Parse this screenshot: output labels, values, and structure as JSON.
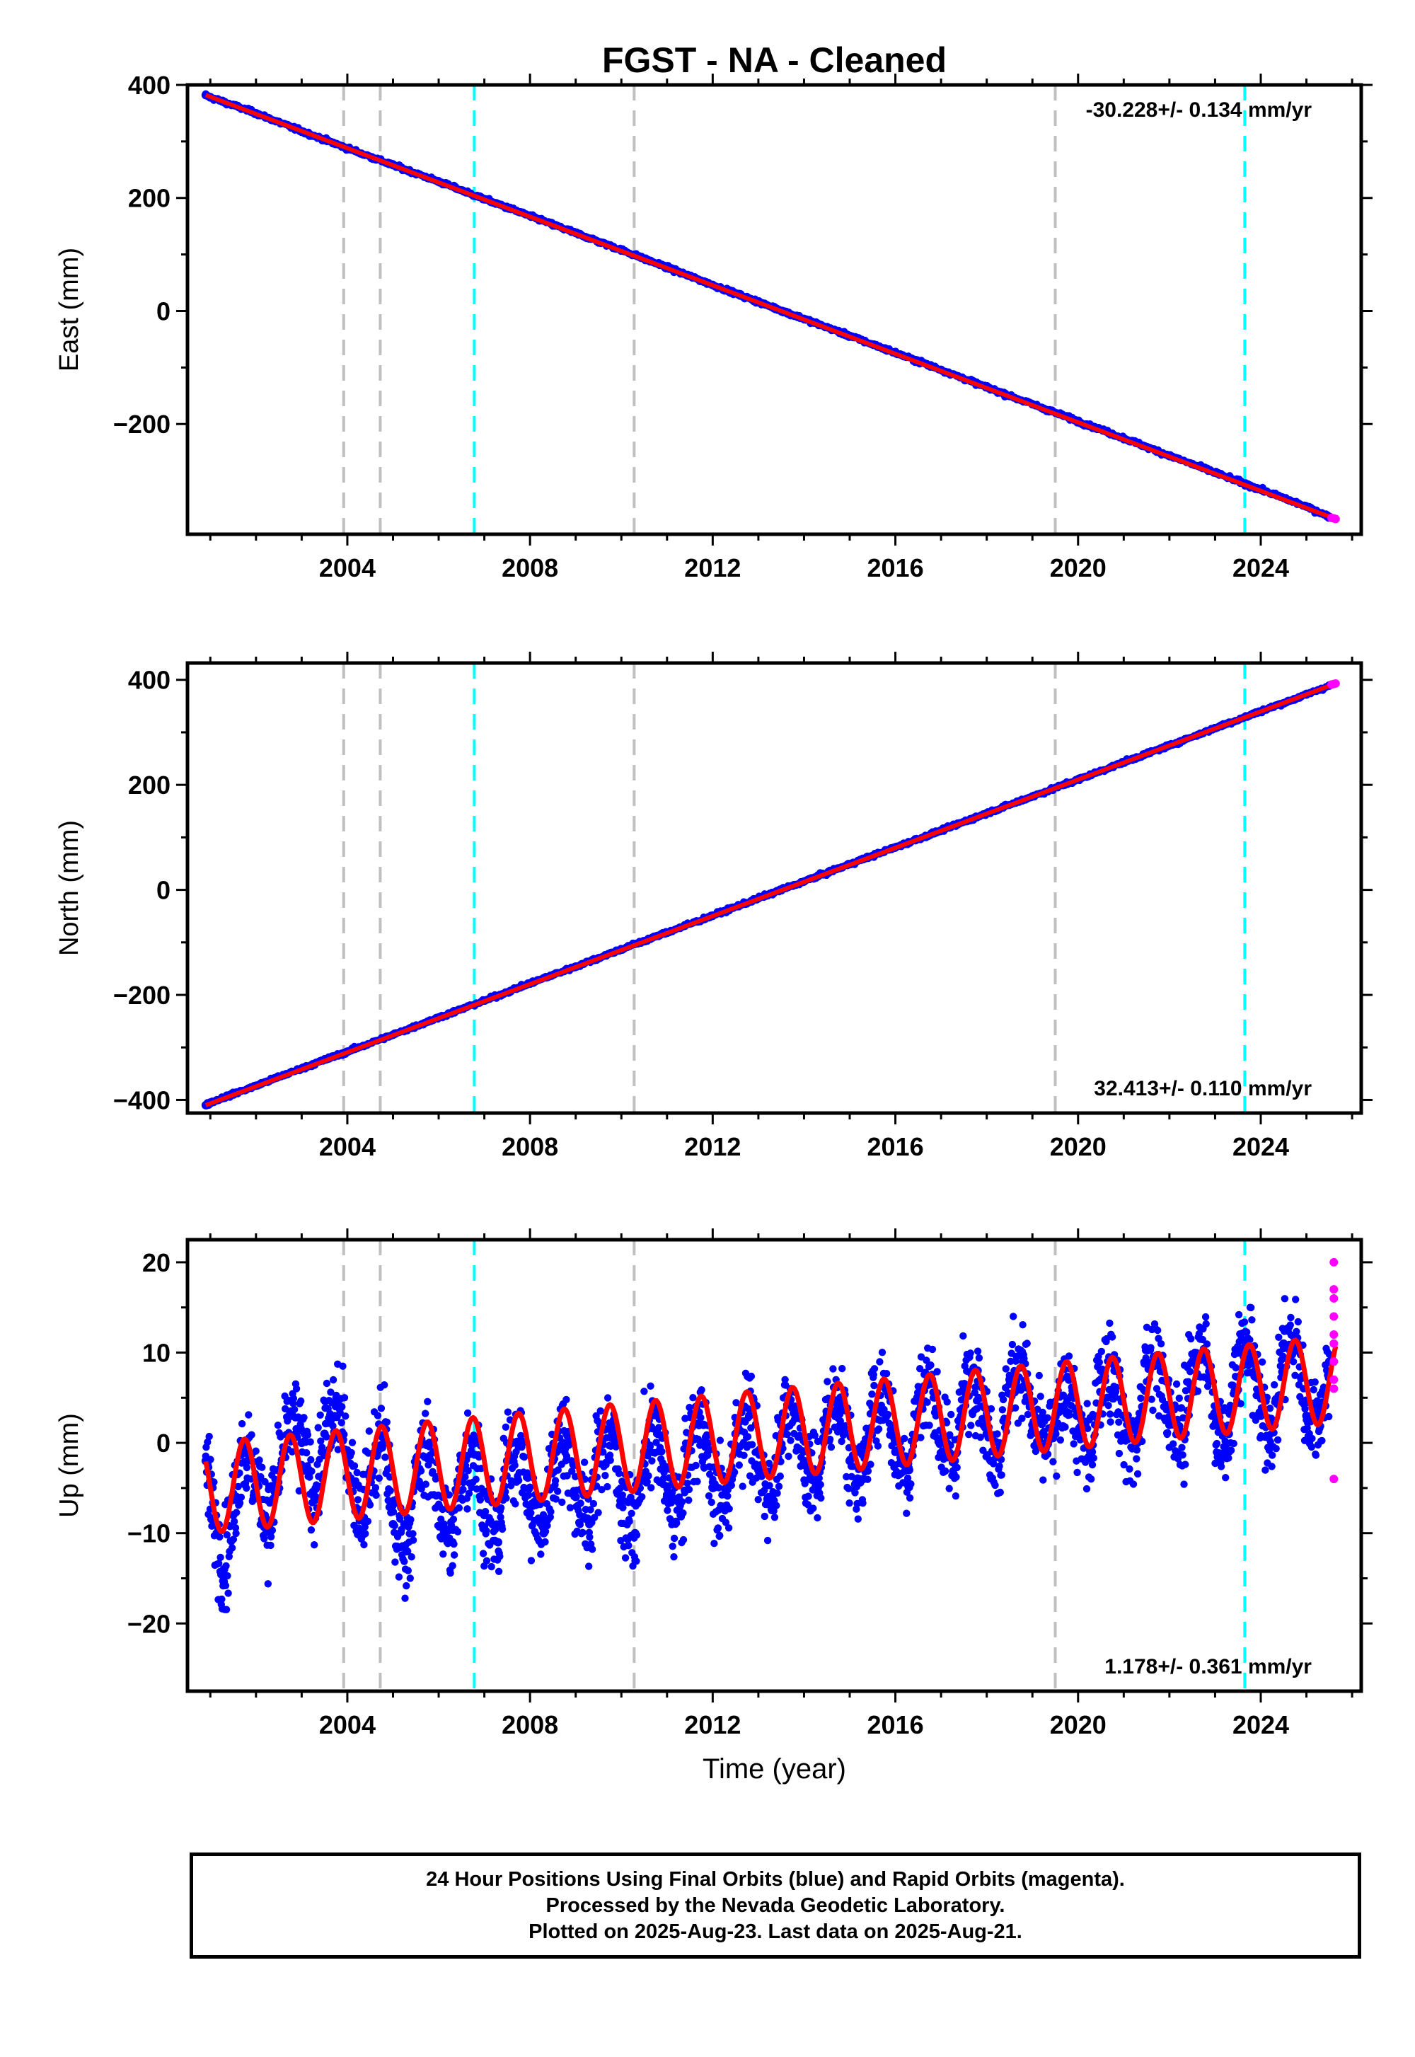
{
  "colors": {
    "final_orbits": "#0000ff",
    "rapid_orbits": "#ff00ff",
    "model_fit": "#ff0000",
    "equipment_change_line": "#c0c0c0",
    "earthquake_line": "#00ffff",
    "axes": "#000000"
  },
  "footer": {
    "line1": "24 Hour Positions Using Final Orbits (blue) and Rapid Orbits (magenta).",
    "line2": "Processed by the Nevada Geodetic Laboratory.",
    "line3": "Plotted on 2025-Aug-23. Last data on 2025-Aug-21."
  },
  "chart_data": [
    {
      "type": "scatter",
      "title": "FGST  - NA - Cleaned",
      "xlabel": "",
      "ylabel": "East (mm)",
      "xlim": [
        2000.5,
        2026.2
      ],
      "ylim": [
        -395,
        400
      ],
      "xticks": [
        2004,
        2008,
        2012,
        2016,
        2020,
        2024
      ],
      "yticks": [
        -200,
        0,
        200,
        400
      ],
      "rate_label": "-30.228+/- 0.134 mm/yr",
      "rate_label_position": "top-right",
      "grid": false,
      "series": [
        {
          "name": "Final Orbits",
          "color": "#0000ff",
          "x": [
            2000.9,
            2001.0,
            2002.0,
            2003.0,
            2004.0,
            2005.0,
            2006.0,
            2007.0,
            2008.0,
            2009.0,
            2010.0,
            2011.0,
            2012.0,
            2013.0,
            2014.0,
            2015.0,
            2016.0,
            2017.0,
            2018.0,
            2019.0,
            2020.0,
            2021.0,
            2022.0,
            2023.0,
            2024.0,
            2025.0,
            2025.5
          ],
          "y": [
            382,
            378,
            350,
            318,
            288,
            258,
            229,
            198,
            168,
            138,
            108,
            77,
            46,
            16,
            -14,
            -44,
            -74,
            -104,
            -135,
            -165,
            -195,
            -225,
            -256,
            -286,
            -316,
            -346,
            -364
          ]
        },
        {
          "name": "Rapid Orbits",
          "color": "#ff00ff",
          "x": [
            2025.55,
            2025.6,
            2025.64
          ],
          "y": [
            -366,
            -367,
            -368
          ]
        }
      ],
      "model_fit": {
        "color": "#ff0000",
        "x": [
          2000.9,
          2025.64
        ],
        "y": [
          382,
          -368
        ]
      }
    },
    {
      "type": "scatter",
      "title": "",
      "xlabel": "",
      "ylabel": "North (mm)",
      "xlim": [
        2000.5,
        2026.2
      ],
      "ylim": [
        -425,
        432
      ],
      "xticks": [
        2004,
        2008,
        2012,
        2016,
        2020,
        2024
      ],
      "yticks": [
        -400,
        -200,
        0,
        200,
        400
      ],
      "rate_label": "32.413+/- 0.110 mm/yr",
      "rate_label_position": "bottom-right",
      "grid": false,
      "series": [
        {
          "name": "Final Orbits",
          "color": "#0000ff",
          "x": [
            2000.9,
            2001.0,
            2002.0,
            2003.0,
            2004.0,
            2005.0,
            2006.0,
            2007.0,
            2008.0,
            2009.0,
            2010.0,
            2011.0,
            2012.0,
            2013.0,
            2014.0,
            2015.0,
            2016.0,
            2017.0,
            2018.0,
            2019.0,
            2020.0,
            2021.0,
            2022.0,
            2023.0,
            2024.0,
            2025.0,
            2025.5
          ],
          "y": [
            -410,
            -405,
            -373,
            -340,
            -308,
            -276,
            -243,
            -211,
            -178,
            -146,
            -113,
            -81,
            -49,
            -16,
            16,
            49,
            81,
            113,
            146,
            178,
            210,
            243,
            275,
            308,
            340,
            372,
            389
          ]
        },
        {
          "name": "Rapid Orbits",
          "color": "#ff00ff",
          "x": [
            2025.55,
            2025.6,
            2025.64
          ],
          "y": [
            391,
            392,
            393
          ]
        }
      ],
      "model_fit": {
        "color": "#ff0000",
        "x": [
          2000.9,
          2025.64
        ],
        "y": [
          -410,
          393
        ]
      }
    },
    {
      "type": "scatter",
      "title": "",
      "xlabel": "Time (year)",
      "ylabel": "Up (mm)",
      "xlim": [
        2000.5,
        2026.2
      ],
      "ylim": [
        -27.5,
        22.5
      ],
      "xticks": [
        2004,
        2008,
        2012,
        2016,
        2020,
        2024
      ],
      "yticks": [
        -20,
        -10,
        0,
        10,
        20
      ],
      "rate_label": "1.178+/- 0.361 mm/yr",
      "rate_label_position": "bottom-right",
      "grid": false,
      "series": [
        {
          "name": "Final Orbits",
          "color": "#0000ff",
          "x": [
            2000.9,
            2001.1,
            2001.3,
            2001.5,
            2001.7,
            2002.0,
            2002.3,
            2002.5,
            2002.8,
            2003.0,
            2003.3,
            2003.5,
            2003.8,
            2004.0,
            2004.3,
            2004.5,
            2004.8,
            2005.0,
            2005.3,
            2005.5,
            2005.8,
            2006.0,
            2006.3,
            2006.5,
            2006.8,
            2007.0,
            2007.3,
            2007.5,
            2007.8,
            2008.0,
            2008.3,
            2008.5,
            2008.8,
            2009.0,
            2009.3,
            2009.5,
            2009.8,
            2010.0,
            2010.3,
            2010.5,
            2010.8,
            2011.0,
            2011.3,
            2011.5,
            2011.8,
            2012.0,
            2012.3,
            2012.5,
            2012.8,
            2013.0,
            2013.3,
            2013.5,
            2013.8,
            2014.0,
            2014.3,
            2014.5,
            2014.8,
            2015.0,
            2015.3,
            2015.5,
            2015.8,
            2016.0,
            2016.3,
            2016.5,
            2016.8,
            2017.0,
            2017.3,
            2017.5,
            2017.8,
            2018.0,
            2018.3,
            2018.5,
            2018.8,
            2019.0,
            2019.3,
            2019.5,
            2019.8,
            2020.0,
            2020.3,
            2020.5,
            2020.8,
            2021.0,
            2021.3,
            2021.5,
            2021.8,
            2022.0,
            2022.3,
            2022.5,
            2022.8,
            2023.0,
            2023.3,
            2023.5,
            2023.8,
            2024.0,
            2024.3,
            2024.5,
            2024.8,
            2025.0,
            2025.3,
            2025.5
          ],
          "y": [
            -2,
            -9,
            -14,
            -8,
            0,
            -4,
            -9,
            -3,
            3,
            0,
            -6,
            1,
            4,
            -1,
            -8,
            -4,
            2,
            -9,
            -12,
            -4,
            0,
            -7,
            -11,
            -3,
            0,
            -8,
            -11,
            -2,
            0,
            -7,
            -10,
            -2,
            1,
            -6,
            -9,
            -1,
            1,
            -6,
            -10,
            -1,
            1,
            -6,
            -8,
            0,
            2,
            -5,
            -7,
            1,
            3,
            -3,
            -6,
            2,
            4,
            -2,
            -5,
            3,
            5,
            -2,
            -4,
            4,
            6,
            -1,
            -3,
            5,
            7,
            0,
            -2,
            6,
            8,
            1,
            -1,
            7,
            9,
            2,
            0,
            1,
            7,
            1,
            -1,
            8,
            8,
            1,
            0,
            9,
            9,
            2,
            1,
            9,
            10,
            2,
            1,
            10,
            10,
            3,
            2,
            11,
            11,
            3,
            3,
            9
          ]
        },
        {
          "name": "Rapid Orbits",
          "color": "#ff00ff",
          "x": [
            2025.6,
            2025.6,
            2025.6,
            2025.6,
            2025.6,
            2025.6,
            2025.6,
            2025.6,
            2025.6,
            2025.6
          ],
          "y": [
            20,
            17,
            16,
            14,
            12,
            11,
            9,
            7,
            6,
            -4
          ]
        }
      ],
      "model_fit": {
        "color": "#ff0000",
        "x": [
          2000.9,
          2025.64
        ],
        "trend_start": -5.0,
        "trend_end": 7.0,
        "amplitude_start": 5.0,
        "amplitude_end": 4.8
      }
    }
  ],
  "vertical_lines": {
    "equipment_change_years": [
      2003.92,
      2004.72,
      2010.28,
      2019.5
    ],
    "earthquake_years": [
      2006.78,
      2023.65
    ]
  }
}
